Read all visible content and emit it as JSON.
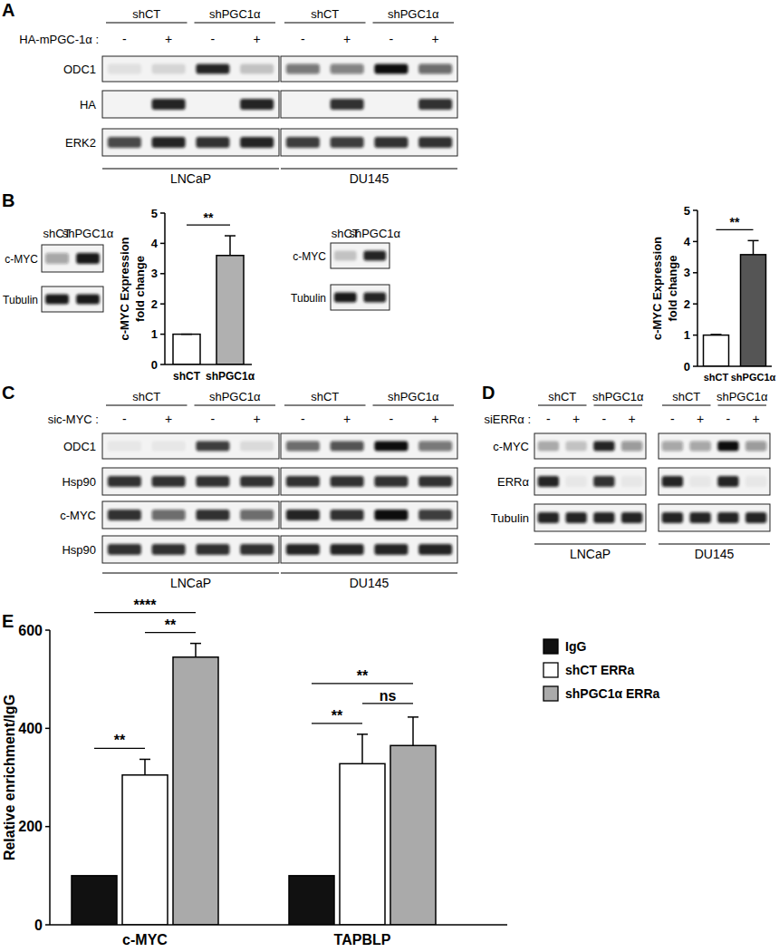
{
  "panel_labels": [
    "A",
    "B",
    "C",
    "D",
    "E"
  ],
  "blots": [
    {
      "header": [
        "shCT",
        "shPGC1α"
      ],
      "treatment": "HA-mPGC-1α :",
      "signs": [
        "-",
        "+",
        "-",
        "+"
      ],
      "rows": [
        "ODC1",
        "HA",
        "ERK2"
      ],
      "cell_lines": [
        {
          "name": "LNCaP",
          "bands": [
            [
              0.08,
              0.12,
              0.9,
              0.2
            ],
            [
              0,
              0.9,
              0,
              0.9
            ],
            [
              0.75,
              0.9,
              0.85,
              0.9
            ]
          ]
        },
        {
          "name": "DU145",
          "bands": [
            [
              0.55,
              0.5,
              1,
              0.6
            ],
            [
              0,
              0.85,
              0,
              0.85
            ],
            [
              0.8,
              0.8,
              0.85,
              0.85
            ]
          ]
        }
      ]
    },
    {
      "header": [
        "shCT",
        "shPGC1α"
      ],
      "rows": [
        "c-MYC",
        "Tubulin"
      ],
      "cell_lines": [
        {
          "bands": [
            [
              0.35,
              0.95
            ],
            [
              0.95,
              0.95
            ]
          ]
        }
      ]
    },
    {
      "header": [
        "shCT",
        "shPGC1α"
      ],
      "rows": [
        "c-MYC",
        "Tubulin"
      ],
      "cell_lines": [
        {
          "bands": [
            [
              0.2,
              0.9
            ],
            [
              0.95,
              0.9
            ]
          ]
        }
      ]
    },
    {
      "header": [
        "shCT",
        "shPGC1α"
      ],
      "treatment": "sic-MYC :",
      "signs": [
        "-",
        "+",
        "-",
        "+"
      ],
      "rows": [
        "ODC1",
        "Hsp90",
        "c-MYC",
        "Hsp90"
      ],
      "cell_lines": [
        {
          "name": "LNCaP",
          "bands": [
            [
              0.05,
              0.05,
              0.8,
              0.1
            ],
            [
              0.85,
              0.85,
              0.85,
              0.85
            ],
            [
              0.85,
              0.6,
              0.85,
              0.6
            ],
            [
              0.85,
              0.85,
              0.85,
              0.85
            ]
          ]
        },
        {
          "name": "DU145",
          "bands": [
            [
              0.6,
              0.7,
              1,
              0.55
            ],
            [
              0.85,
              0.85,
              0.85,
              0.85
            ],
            [
              0.9,
              0.85,
              1,
              0.8
            ],
            [
              0.9,
              0.9,
              0.9,
              0.9
            ]
          ]
        }
      ]
    },
    {
      "header": [
        "shCT",
        "shPGC1α"
      ],
      "treatment": "siERRα :",
      "signs": [
        "-",
        "+",
        "-",
        "+"
      ],
      "rows": [
        "c-MYC",
        "ERRα",
        "Tubulin"
      ],
      "cell_lines": [
        {
          "name": "LNCaP",
          "bands": [
            [
              0.3,
              0.2,
              0.9,
              0.4
            ],
            [
              0.9,
              0.05,
              0.85,
              0.05
            ],
            [
              0.9,
              0.9,
              0.9,
              0.9
            ]
          ]
        },
        {
          "name": "DU145",
          "bands": [
            [
              0.35,
              0.35,
              1,
              0.4
            ],
            [
              0.9,
              0.05,
              0.9,
              0.05
            ],
            [
              0.9,
              0.9,
              0.9,
              0.9
            ]
          ]
        }
      ]
    }
  ],
  "chart_data": [
    {
      "type": "bar",
      "categories": [
        "shCT",
        "shPGC1α"
      ],
      "values": [
        1,
        3.6
      ],
      "errors": [
        0,
        0.65
      ],
      "colors": [
        "#ffffff",
        "#b0b0b0"
      ],
      "ylabel": [
        "c-MYC Expression",
        "fold change"
      ],
      "ylim": [
        0,
        5
      ],
      "yticks": [
        0,
        1,
        2,
        3,
        4,
        5
      ],
      "annotations": [
        {
          "between": [
            "shCT",
            "shPGC1α"
          ],
          "label": "**"
        }
      ]
    },
    {
      "type": "bar",
      "categories": [
        "shCT",
        "shPGC1α"
      ],
      "values": [
        1,
        3.58
      ],
      "errors": [
        0.02,
        0.45
      ],
      "colors": [
        "#ffffff",
        "#555555"
      ],
      "ylabel": [
        "c-MYC Expression",
        "fold change"
      ],
      "ylim": [
        0,
        5
      ],
      "yticks": [
        0,
        1,
        2,
        3,
        4,
        5
      ],
      "annotations": [
        {
          "between": [
            "shCT",
            "shPGC1α"
          ],
          "label": "**"
        }
      ]
    },
    {
      "type": "bar",
      "categories": [
        "c-MYC",
        "TAPBLP"
      ],
      "series": [
        {
          "name": "IgG",
          "color": "#111111",
          "values": [
            100,
            100
          ]
        },
        {
          "name": "shCT ERRa",
          "color": "#ffffff",
          "values": [
            305,
            328
          ],
          "errors": [
            32,
            60
          ]
        },
        {
          "name": "shPGC1α ERRa",
          "color": "#aaaaaa",
          "values": [
            545,
            365
          ],
          "errors": [
            28,
            58
          ]
        }
      ],
      "ylabel": "Relative enrichment/IgG",
      "ylim": [
        0,
        600
      ],
      "yticks": [
        0,
        200,
        400,
        600
      ],
      "legend": "right",
      "annotations": [
        {
          "category": "c-MYC",
          "between": [
            "IgG",
            "shCT ERRa"
          ],
          "label": "**"
        },
        {
          "category": "c-MYC",
          "between": [
            "shCT ERRa",
            "shPGC1α ERRa"
          ],
          "label": "**"
        },
        {
          "category": "c-MYC",
          "between": [
            "IgG",
            "shPGC1α ERRa"
          ],
          "label": "****"
        },
        {
          "category": "TAPBLP",
          "between": [
            "IgG",
            "shCT ERRa"
          ],
          "label": "**"
        },
        {
          "category": "TAPBLP",
          "between": [
            "shCT ERRa",
            "shPGC1α ERRa"
          ],
          "label": "ns"
        },
        {
          "category": "TAPBLP",
          "between": [
            "IgG",
            "shPGC1α ERRa"
          ],
          "label": "**"
        }
      ]
    }
  ]
}
